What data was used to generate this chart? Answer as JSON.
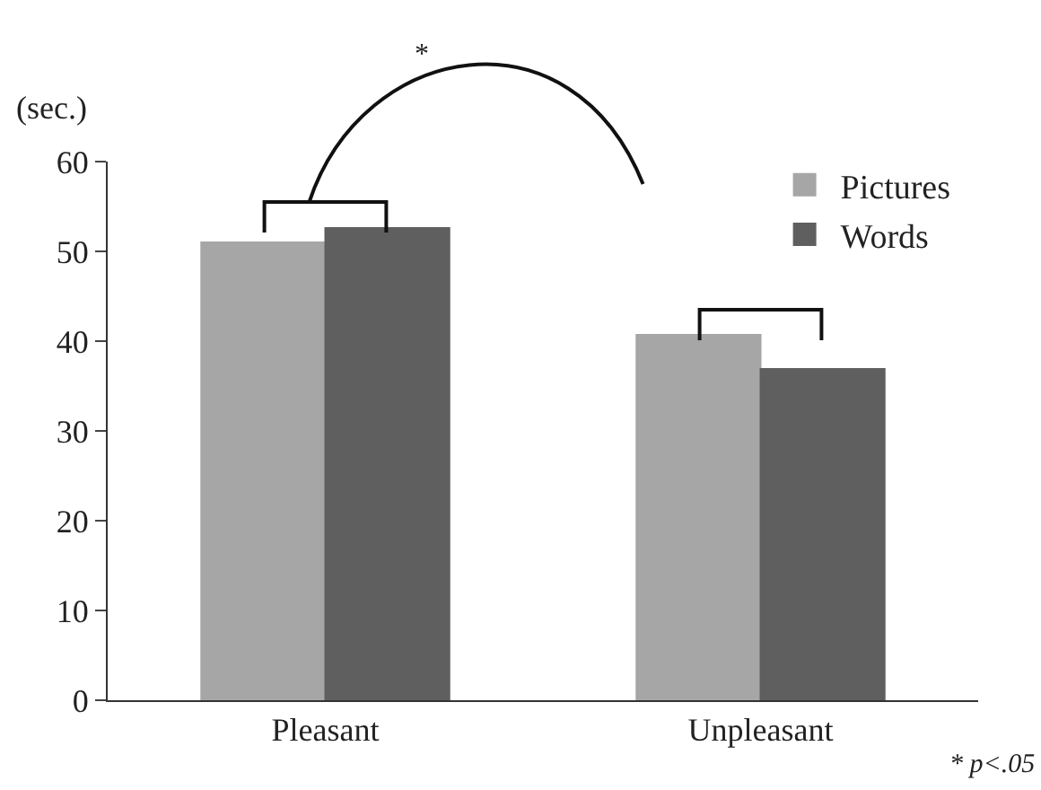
{
  "chart_data": {
    "type": "bar",
    "ylabel": "(sec.)",
    "categories": [
      "Pleasant",
      "Unpleasant"
    ],
    "series": [
      {
        "name": "Pictures",
        "color": "#a6a6a6",
        "values": [
          51.0,
          40.7
        ]
      },
      {
        "name": "Words",
        "color": "#5f5f5f",
        "values": [
          52.6,
          36.9
        ]
      }
    ],
    "ylim": [
      0,
      60
    ],
    "yticks": [
      0,
      10,
      20,
      30,
      40,
      50,
      60
    ],
    "grid": false,
    "legend": "top right",
    "annotations": [
      "*",
      "* p<.05"
    ]
  }
}
